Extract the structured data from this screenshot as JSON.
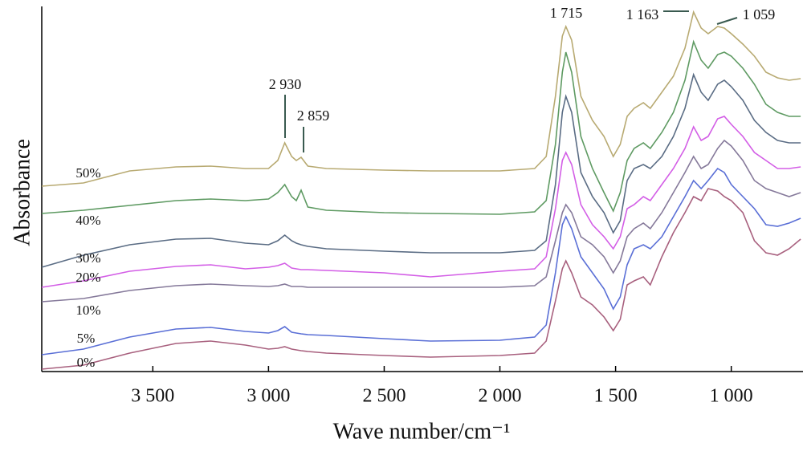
{
  "chart_data": {
    "type": "line",
    "xlabel": "Wave number/cm⁻¹",
    "ylabel": "Absorbance",
    "x": [
      3980,
      3800,
      3600,
      3400,
      3250,
      3100,
      3000,
      2960,
      2930,
      2900,
      2880,
      2859,
      2830,
      2750,
      2500,
      2300,
      2000,
      1850,
      1800,
      1760,
      1730,
      1715,
      1690,
      1650,
      1600,
      1550,
      1510,
      1480,
      1450,
      1420,
      1380,
      1350,
      1300,
      1250,
      1200,
      1163,
      1130,
      1100,
      1059,
      1030,
      1000,
      950,
      900,
      850,
      800,
      750,
      700
    ],
    "xlim": [
      3980,
      690
    ],
    "ylim": [
      0,
      455
    ],
    "xticks": [
      {
        "value": 3500,
        "label": "3 500"
      },
      {
        "value": 3000,
        "label": "3 000"
      },
      {
        "value": 2500,
        "label": "2 500"
      },
      {
        "value": 2000,
        "label": "2 000"
      },
      {
        "value": 1500,
        "label": "1 500"
      },
      {
        "value": 1000,
        "label": "1 000"
      }
    ],
    "series": [
      {
        "name": "50%",
        "color": "#b8aa72",
        "values": [
          231,
          235,
          250,
          255,
          256,
          253,
          253,
          263,
          285,
          268,
          263,
          267,
          256,
          253,
          251,
          250,
          250,
          253,
          268,
          343,
          418,
          430,
          413,
          343,
          313,
          293,
          268,
          283,
          318,
          328,
          335,
          328,
          348,
          368,
          403,
          448,
          428,
          421,
          430,
          428,
          421,
          408,
          393,
          373,
          366,
          363,
          365
        ]
      },
      {
        "name": "40%",
        "color": "#5e9a62",
        "values": [
          197,
          201,
          207,
          213,
          215,
          213,
          215,
          223,
          233,
          218,
          213,
          226,
          205,
          201,
          198,
          197,
          196,
          199,
          213,
          283,
          373,
          398,
          373,
          293,
          253,
          223,
          200,
          223,
          263,
          278,
          285,
          278,
          298,
          323,
          363,
          411,
          388,
          378,
          395,
          398,
          393,
          378,
          358,
          333,
          323,
          318,
          318
        ]
      },
      {
        "name": "30%",
        "color": "#5a6c84",
        "values": [
          130,
          145,
          158,
          165,
          166,
          160,
          158,
          163,
          170,
          163,
          160,
          158,
          156,
          153,
          150,
          148,
          148,
          151,
          163,
          233,
          323,
          343,
          323,
          248,
          218,
          198,
          173,
          188,
          238,
          253,
          258,
          253,
          268,
          293,
          328,
          370,
          348,
          338,
          358,
          363,
          355,
          338,
          313,
          298,
          288,
          285,
          285
        ]
      },
      {
        "name": "20%",
        "color": "#d35ee6",
        "values": [
          105,
          113,
          125,
          131,
          133,
          128,
          130,
          132,
          135,
          129,
          128,
          127,
          127,
          126,
          123,
          118,
          125,
          128,
          143,
          203,
          263,
          273,
          258,
          208,
          183,
          168,
          153,
          168,
          203,
          208,
          218,
          213,
          233,
          253,
          278,
          305,
          288,
          293,
          315,
          318,
          308,
          293,
          273,
          263,
          253,
          253,
          255
        ]
      },
      {
        "name": "10%",
        "color": "#85799a",
        "values": [
          87,
          91,
          101,
          107,
          109,
          107,
          106,
          107,
          109,
          106,
          106,
          106,
          105,
          105,
          105,
          105,
          105,
          107,
          118,
          163,
          198,
          208,
          198,
          168,
          158,
          143,
          123,
          138,
          168,
          178,
          185,
          178,
          198,
          223,
          248,
          268,
          253,
          258,
          278,
          288,
          281,
          263,
          238,
          228,
          223,
          218,
          223
        ]
      },
      {
        "name": "5%",
        "color": "#5a6fd6",
        "values": [
          21,
          28,
          43,
          53,
          55,
          50,
          48,
          51,
          56,
          49,
          48,
          47,
          46,
          45,
          41,
          38,
          39,
          43,
          58,
          123,
          183,
          193,
          178,
          143,
          123,
          103,
          78,
          93,
          133,
          153,
          158,
          153,
          168,
          193,
          218,
          238,
          228,
          238,
          253,
          248,
          233,
          218,
          203,
          183,
          181,
          185,
          191
        ]
      },
      {
        "name": "0%",
        "color": "#a8607e",
        "values": [
          3,
          8,
          23,
          35,
          38,
          33,
          28,
          29,
          31,
          28,
          27,
          26,
          25,
          23,
          20,
          18,
          20,
          23,
          38,
          88,
          128,
          138,
          123,
          93,
          83,
          68,
          51,
          65,
          108,
          113,
          118,
          108,
          143,
          173,
          198,
          218,
          213,
          228,
          225,
          218,
          213,
          198,
          163,
          148,
          145,
          153,
          165
        ]
      }
    ],
    "annotations": [
      {
        "label": "2 930"
      },
      {
        "label": "2 859"
      },
      {
        "label": "1 715"
      },
      {
        "label": "1 163"
      },
      {
        "label": "1 059"
      }
    ]
  }
}
